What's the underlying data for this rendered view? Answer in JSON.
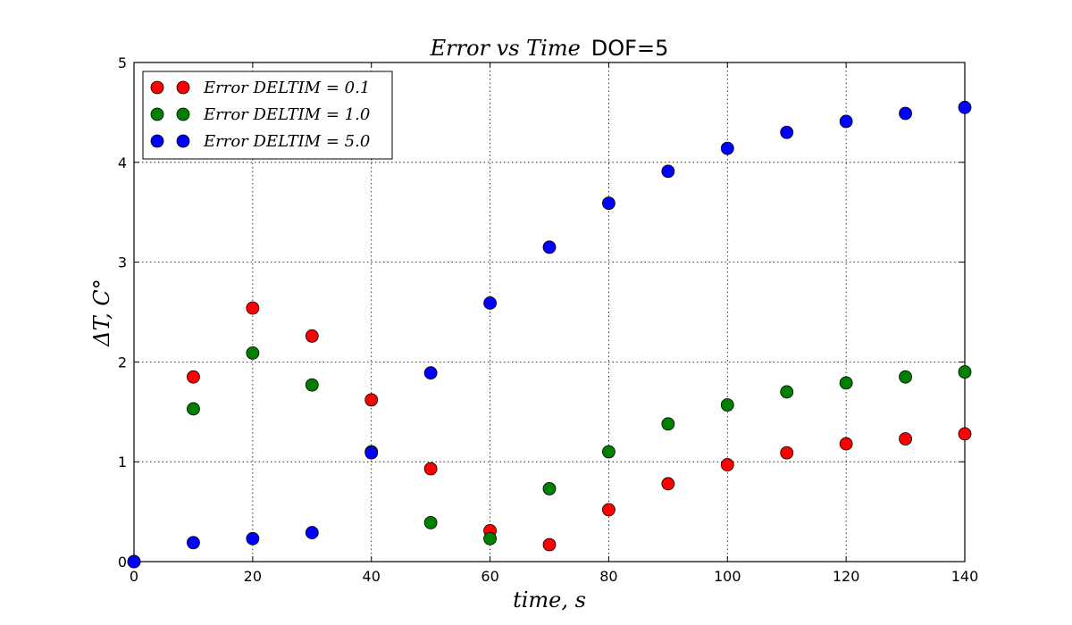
{
  "chart_data": {
    "type": "scatter",
    "title": {
      "italic_part": "Error vs Time",
      "plain_part": "DOF=5"
    },
    "xlabel": "time, s",
    "ylabel": "ΔT, C°",
    "xlim": [
      0,
      140
    ],
    "ylim": [
      0,
      5
    ],
    "xticks": [
      0,
      20,
      40,
      60,
      80,
      100,
      120,
      140
    ],
    "yticks": [
      0,
      1,
      2,
      3,
      4,
      5
    ],
    "xtick_labels": [
      "0",
      "20",
      "40",
      "60",
      "80",
      "100",
      "120",
      "140"
    ],
    "ytick_labels": [
      "0",
      "1",
      "2",
      "3",
      "4",
      "5"
    ],
    "grid": true,
    "legend_position": "top-left",
    "x": [
      0,
      10,
      20,
      30,
      40,
      50,
      60,
      70,
      80,
      90,
      100,
      110,
      120,
      130,
      140
    ],
    "series": [
      {
        "name": "Error DELTIM = 0.1",
        "color": "#ff0000",
        "values": [
          0,
          1.85,
          2.54,
          2.26,
          1.62,
          0.93,
          0.31,
          0.17,
          0.52,
          0.78,
          0.97,
          1.09,
          1.18,
          1.23,
          1.28
        ]
      },
      {
        "name": "Error DELTIM = 1.0",
        "color": "#008000",
        "values": [
          0,
          1.53,
          2.09,
          1.77,
          1.1,
          0.39,
          0.23,
          0.73,
          1.1,
          1.38,
          1.57,
          1.7,
          1.79,
          1.85,
          1.9
        ]
      },
      {
        "name": "Error DELTIM = 5.0",
        "color": "#0000ff",
        "values": [
          0,
          0.19,
          0.23,
          0.29,
          1.09,
          1.89,
          2.59,
          3.15,
          3.59,
          3.91,
          4.14,
          4.3,
          4.41,
          4.49,
          4.55
        ]
      }
    ]
  }
}
